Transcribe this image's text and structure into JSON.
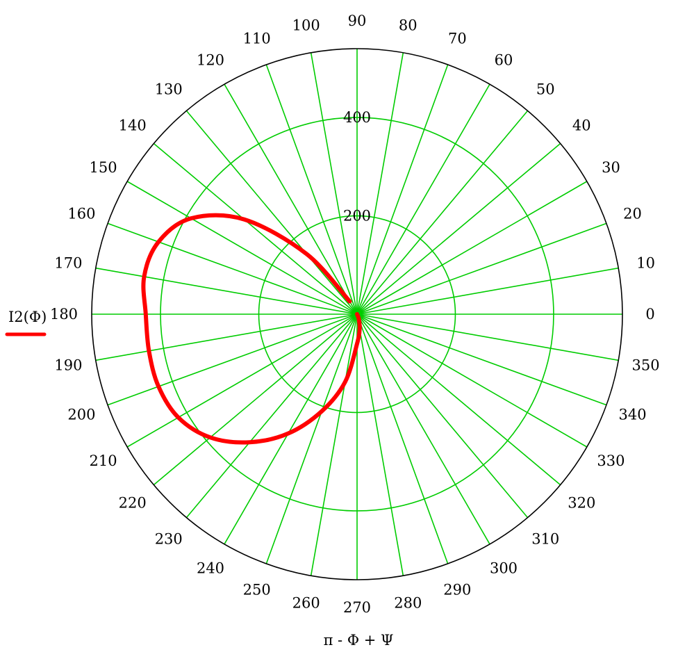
{
  "chart_data": {
    "type": "polar-line",
    "title": "",
    "xlabel": "π - Φ + Ψ",
    "ylabel": "",
    "angle_unit": "degrees",
    "angle_ticks": [
      0,
      10,
      20,
      30,
      40,
      50,
      60,
      70,
      80,
      90,
      100,
      110,
      120,
      130,
      140,
      150,
      160,
      170,
      180,
      190,
      200,
      210,
      220,
      230,
      240,
      250,
      260,
      270,
      280,
      290,
      300,
      310,
      320,
      330,
      340,
      350
    ],
    "radial_ticks": [
      200,
      400
    ],
    "radial_range": [
      0,
      540
    ],
    "grid": true,
    "grid_color": "#00cc00",
    "legend": {
      "position": "left",
      "entries": [
        {
          "label": "I2(Φ)",
          "color": "#ff0000"
        }
      ]
    },
    "series": [
      {
        "name": "I2(Φ)",
        "color": "#ff0000",
        "angles_deg": [
          120,
          130,
          140,
          150,
          160,
          170,
          180,
          190,
          200,
          210,
          220,
          230,
          240,
          250,
          260,
          270,
          280,
          290,
          300
        ],
        "r": [
          30,
          160,
          300,
          390,
          430,
          440,
          430,
          430,
          430,
          420,
          390,
          340,
          280,
          210,
          140,
          60,
          30,
          10,
          0
        ]
      }
    ]
  }
}
